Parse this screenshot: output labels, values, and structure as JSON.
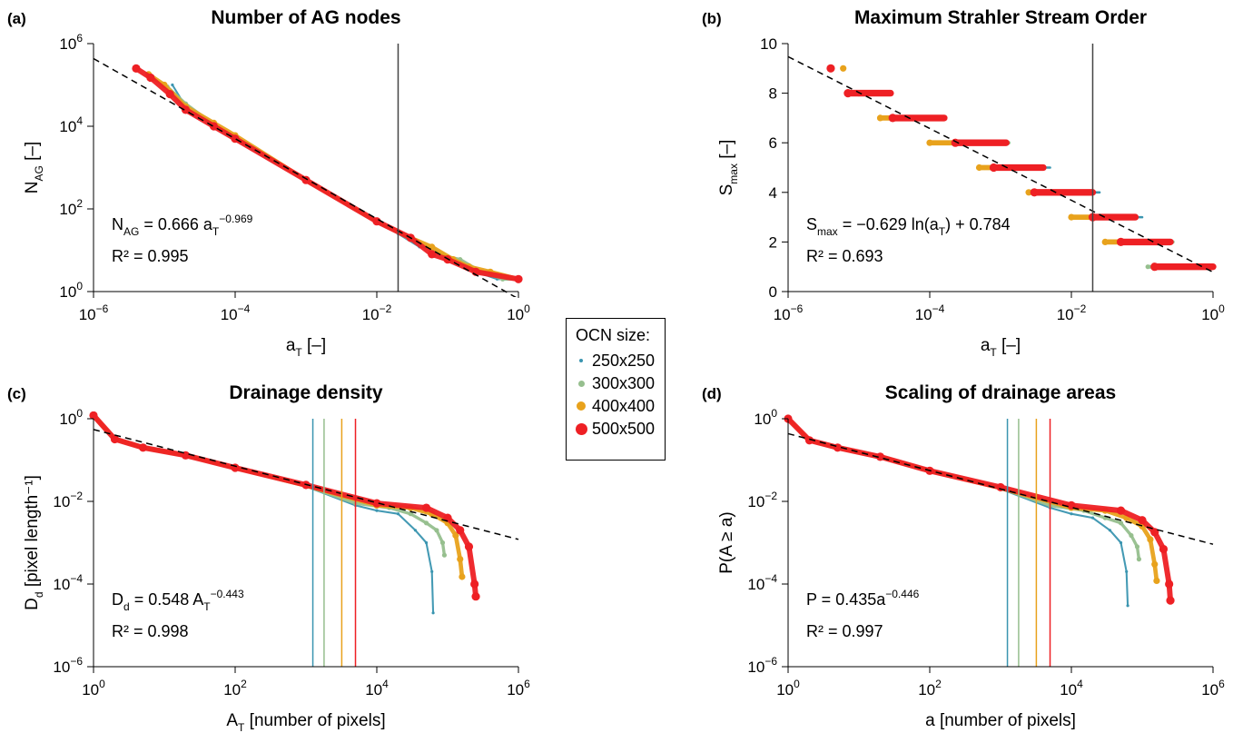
{
  "legend": {
    "title": "OCN size:",
    "items": [
      {
        "label": "250x250",
        "color": "#3a95b0"
      },
      {
        "label": "300x300",
        "color": "#96bf8e"
      },
      {
        "label": "400x400",
        "color": "#e8a21c"
      },
      {
        "label": "500x500",
        "color": "#ee2024"
      }
    ]
  },
  "chart_data": [
    {
      "panel": "(a)",
      "type": "scatter",
      "title": "Number of AG nodes",
      "xlabel": "a_T [–]",
      "ylabel": "N_AG [–]",
      "xscale": "log",
      "yscale": "log",
      "xlim": [
        1e-06,
        1
      ],
      "ylim": [
        1,
        1000000.0
      ],
      "xticks": [
        "10^-6",
        "10^-4",
        "10^-2",
        "10^0"
      ],
      "yticks": [
        "10^0",
        "10^2",
        "10^4",
        "10^6"
      ],
      "annotation": [
        "N_AG = 0.666 a_T^-0.969",
        "R² = 0.995"
      ],
      "fit": {
        "form": "power",
        "a": 0.666,
        "b": -0.969
      },
      "vlines": [
        {
          "x": 0.02,
          "color": "#444444"
        }
      ],
      "series": [
        {
          "name": "250x250",
          "x": [
            1.3e-05,
            2e-05,
            5e-05,
            0.0001,
            0.001,
            0.01,
            0.02,
            0.04,
            0.06,
            0.1,
            0.15,
            0.25,
            0.5,
            1
          ],
          "y": [
            100000,
            30000,
            10000,
            5000,
            500,
            50,
            25,
            12,
            12,
            7,
            5,
            3,
            2,
            2
          ]
        },
        {
          "name": "300x300",
          "x": [
            1.1e-05,
            2e-05,
            5e-05,
            0.0001,
            0.001,
            0.01,
            0.03,
            0.06,
            0.1,
            0.15,
            0.3,
            0.6,
            1
          ],
          "y": [
            90000,
            35000,
            11000,
            5000,
            500,
            50,
            18,
            10,
            7,
            6,
            3,
            2,
            2
          ]
        },
        {
          "name": "400x400",
          "x": [
            6e-06,
            1e-05,
            2e-05,
            5e-05,
            0.0001,
            0.001,
            0.01,
            0.03,
            0.06,
            0.12,
            0.2,
            0.4,
            1
          ],
          "y": [
            180000,
            100000,
            30000,
            12000,
            6000,
            500,
            50,
            20,
            12,
            6,
            4,
            3,
            2
          ]
        },
        {
          "name": "500x500",
          "x": [
            4e-06,
            6.4e-06,
            1.2e-05,
            2e-05,
            5e-05,
            0.0001,
            0.001,
            0.01,
            0.03,
            0.06,
            0.1,
            0.25,
            1
          ],
          "y": [
            250000,
            150000,
            60000,
            25000,
            10000,
            5000,
            500,
            50,
            20,
            8,
            6,
            3,
            2
          ]
        }
      ]
    },
    {
      "panel": "(b)",
      "type": "scatter",
      "title": "Maximum Strahler Stream Order",
      "xlabel": "a_T [–]",
      "ylabel": "S_max [–]",
      "xscale": "log",
      "yscale": "linear",
      "xlim": [
        1e-06,
        1
      ],
      "ylim": [
        0,
        10
      ],
      "xticks": [
        "10^-6",
        "10^-4",
        "10^-2",
        "10^0"
      ],
      "yticks": [
        "0",
        "2",
        "4",
        "6",
        "8",
        "10"
      ],
      "annotation": [
        "S_max = −0.629 ln(a_T) + 0.784",
        "R² = 0.693"
      ],
      "fit": {
        "form": "log",
        "a": -0.629,
        "b": 0.784
      },
      "vlines": [
        {
          "x": 0.02,
          "color": "#444444"
        }
      ],
      "steps": [
        {
          "name": "250x250",
          "levels": [
            [
              8,
              1e-05,
              2e-05
            ],
            [
              7,
              3e-05,
              0.00015
            ],
            [
              6,
              0.0002,
              0.001
            ],
            [
              5,
              0.0007,
              0.005
            ],
            [
              4,
              0.004,
              0.025
            ],
            [
              3,
              0.025,
              0.1
            ],
            [
              2,
              0.07,
              0.25
            ],
            [
              1,
              0.15,
              1
            ]
          ]
        },
        {
          "name": "300x300",
          "levels": [
            [
              8,
              1.2e-05,
              2e-05
            ],
            [
              7,
              2.5e-05,
              0.00015
            ],
            [
              6,
              0.00017,
              0.0013
            ],
            [
              5,
              0.0006,
              0.003
            ],
            [
              4,
              0.0027,
              0.018
            ],
            [
              3,
              0.013,
              0.08
            ],
            [
              2,
              0.05,
              0.27
            ],
            [
              1,
              0.12,
              1
            ]
          ]
        },
        {
          "name": "400x400",
          "levels": [
            [
              9,
              6e-06,
              6e-06
            ],
            [
              8,
              1e-05,
              2e-05
            ],
            [
              7,
              2e-05,
              0.0001
            ],
            [
              6,
              0.0001,
              0.001
            ],
            [
              5,
              0.0005,
              0.0035
            ],
            [
              4,
              0.0025,
              0.02
            ],
            [
              3,
              0.01,
              0.07
            ],
            [
              2,
              0.03,
              0.25
            ],
            [
              1,
              0.15,
              1
            ]
          ]
        },
        {
          "name": "500x500",
          "levels": [
            [
              9,
              4e-06,
              4e-06
            ],
            [
              8,
              7e-06,
              2.8e-05
            ],
            [
              7,
              3e-05,
              0.00016
            ],
            [
              6,
              0.00023,
              0.0012
            ],
            [
              5,
              0.0008,
              0.004
            ],
            [
              4,
              0.003,
              0.02
            ],
            [
              3,
              0.02,
              0.08
            ],
            [
              2,
              0.05,
              0.25
            ],
            [
              1,
              0.15,
              1
            ]
          ]
        }
      ]
    },
    {
      "panel": "(c)",
      "type": "scatter",
      "title": "Drainage density",
      "xlabel": "A_T [number of pixels]",
      "ylabel": "D_d [pixel length⁻¹]",
      "xscale": "log",
      "yscale": "log",
      "xlim": [
        1,
        1000000.0
      ],
      "ylim": [
        1e-06,
        1
      ],
      "xticks": [
        "10^0",
        "10^2",
        "10^4",
        "10^6"
      ],
      "yticks": [
        "10^-6",
        "10^-4",
        "10^-2",
        "10^0"
      ],
      "annotation": [
        "D_d = 0.548 A_T^-0.443",
        "R² = 0.998"
      ],
      "fit": {
        "form": "power",
        "a": 0.548,
        "b": -0.443
      },
      "vlines": [
        {
          "x": 1250,
          "color": "#3a95b0"
        },
        {
          "x": 1800,
          "color": "#96bf8e"
        },
        {
          "x": 3200,
          "color": "#e8a21c"
        },
        {
          "x": 5000,
          "color": "#ee2024"
        }
      ],
      "series": [
        {
          "name": "250x250",
          "x": [
            1,
            2,
            5,
            20,
            100,
            1000,
            5000,
            10000,
            20000,
            35000,
            50000,
            60000,
            62500
          ],
          "y": [
            1.2,
            0.32,
            0.2,
            0.13,
            0.065,
            0.023,
            0.008,
            0.006,
            0.005,
            0.002,
            0.001,
            0.0002,
            2e-05
          ]
        },
        {
          "name": "300x300",
          "x": [
            1,
            2,
            5,
            20,
            100,
            1000,
            5000,
            15000,
            30000,
            50000,
            70000,
            85000,
            90000
          ],
          "y": [
            1.2,
            0.32,
            0.2,
            0.13,
            0.065,
            0.024,
            0.009,
            0.007,
            0.005,
            0.003,
            0.002,
            0.001,
            0.0005
          ]
        },
        {
          "name": "400x400",
          "x": [
            1,
            2,
            5,
            20,
            100,
            1000,
            10000,
            30000,
            60000,
            100000,
            130000,
            150000,
            160000
          ],
          "y": [
            1.2,
            0.32,
            0.2,
            0.13,
            0.065,
            0.024,
            0.008,
            0.007,
            0.005,
            0.003,
            0.0015,
            0.0004,
            0.00015
          ]
        },
        {
          "name": "500x500",
          "x": [
            1,
            2,
            5,
            20,
            100,
            1000,
            10000,
            50000,
            100000,
            150000,
            200000,
            240000,
            250000
          ],
          "y": [
            1.2,
            0.32,
            0.2,
            0.13,
            0.065,
            0.025,
            0.009,
            0.007,
            0.004,
            0.002,
            0.0008,
            0.0001,
            5e-05
          ]
        }
      ]
    },
    {
      "panel": "(d)",
      "type": "scatter",
      "title": "Scaling of drainage areas",
      "xlabel": "a [number of pixels]",
      "ylabel": "P(A ≥ a)",
      "xscale": "log",
      "yscale": "log",
      "xlim": [
        1,
        1000000.0
      ],
      "ylim": [
        1e-06,
        1
      ],
      "xticks": [
        "10^0",
        "10^2",
        "10^4",
        "10^6"
      ],
      "yticks": [
        "10^-6",
        "10^-4",
        "10^-2",
        "10^0"
      ],
      "annotation": [
        "P = 0.435a^-0.446",
        "R² = 0.997"
      ],
      "fit": {
        "form": "power",
        "a": 0.435,
        "b": -0.446
      },
      "vlines": [
        {
          "x": 1250,
          "color": "#3a95b0"
        },
        {
          "x": 1800,
          "color": "#96bf8e"
        },
        {
          "x": 3200,
          "color": "#e8a21c"
        },
        {
          "x": 5000,
          "color": "#ee2024"
        }
      ],
      "series": [
        {
          "name": "250x250",
          "x": [
            1,
            2,
            5,
            20,
            100,
            1000,
            5000,
            10000,
            20000,
            35000,
            50000,
            60000,
            62500
          ],
          "y": [
            1.0,
            0.3,
            0.2,
            0.12,
            0.055,
            0.02,
            0.007,
            0.005,
            0.004,
            0.002,
            0.001,
            0.0002,
            3e-05
          ]
        },
        {
          "name": "300x300",
          "x": [
            1,
            2,
            5,
            20,
            100,
            1000,
            5000,
            15000,
            30000,
            50000,
            70000,
            85000,
            90000
          ],
          "y": [
            1.0,
            0.3,
            0.2,
            0.12,
            0.055,
            0.021,
            0.008,
            0.006,
            0.004,
            0.003,
            0.0015,
            0.0008,
            0.0004
          ]
        },
        {
          "name": "400x400",
          "x": [
            1,
            2,
            5,
            20,
            100,
            1000,
            10000,
            30000,
            60000,
            100000,
            130000,
            150000,
            160000
          ],
          "y": [
            1.0,
            0.3,
            0.2,
            0.12,
            0.055,
            0.021,
            0.007,
            0.006,
            0.004,
            0.0025,
            0.0012,
            0.0003,
            0.00012
          ]
        },
        {
          "name": "500x500",
          "x": [
            1,
            2,
            5,
            20,
            100,
            1000,
            10000,
            50000,
            100000,
            150000,
            200000,
            240000,
            250000
          ],
          "y": [
            1.0,
            0.3,
            0.2,
            0.12,
            0.055,
            0.022,
            0.008,
            0.006,
            0.0035,
            0.0018,
            0.0007,
            0.0001,
            4e-05
          ]
        }
      ]
    }
  ]
}
